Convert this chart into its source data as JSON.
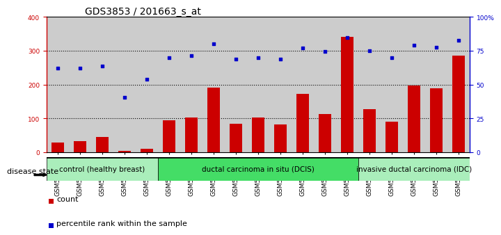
{
  "title": "GDS3853 / 201663_s_at",
  "samples": [
    "GSM535613",
    "GSM535614",
    "GSM535615",
    "GSM535616",
    "GSM535617",
    "GSM535604",
    "GSM535605",
    "GSM535606",
    "GSM535607",
    "GSM535608",
    "GSM535609",
    "GSM535610",
    "GSM535611",
    "GSM535612",
    "GSM535618",
    "GSM535619",
    "GSM535620",
    "GSM535621",
    "GSM535622"
  ],
  "counts": [
    28,
    32,
    45,
    5,
    10,
    95,
    102,
    190,
    85,
    103,
    82,
    173,
    113,
    340,
    128,
    90,
    197,
    188,
    285
  ],
  "percentiles": [
    62,
    62,
    63.75,
    40.75,
    53.75,
    70,
    71.25,
    80,
    68.75,
    70,
    68.75,
    77,
    74.5,
    84.5,
    75,
    70,
    79.25,
    77.5,
    82.5
  ],
  "groups": [
    {
      "label": "control (healthy breast)",
      "start": 0,
      "end": 5,
      "color": "#AAEEBB"
    },
    {
      "label": "ductal carcinoma in situ (DCIS)",
      "start": 5,
      "end": 14,
      "color": "#44DD66"
    },
    {
      "label": "invasive ductal carcinoma (IDC)",
      "start": 14,
      "end": 19,
      "color": "#AAEEBB"
    }
  ],
  "bar_color": "#CC0000",
  "scatter_color": "#0000CC",
  "left_ylim": [
    0,
    400
  ],
  "right_ylim": [
    0,
    100
  ],
  "left_yticks": [
    0,
    100,
    200,
    300,
    400
  ],
  "right_yticks": [
    0,
    25,
    50,
    75,
    100
  ],
  "right_yticklabels": [
    "0",
    "25",
    "50",
    "75",
    "100%"
  ],
  "grid_values": [
    100,
    200,
    300
  ],
  "bar_width": 0.55,
  "col_bg_color": "#CCCCCC",
  "plot_bg_color": "#FFFFFF",
  "legend_count_label": "count",
  "legend_pct_label": "percentile rank within the sample",
  "disease_state_label": "disease state",
  "title_fontsize": 10,
  "tick_fontsize": 6.5,
  "label_fontsize": 8,
  "group_label_fontsize": 7.5
}
